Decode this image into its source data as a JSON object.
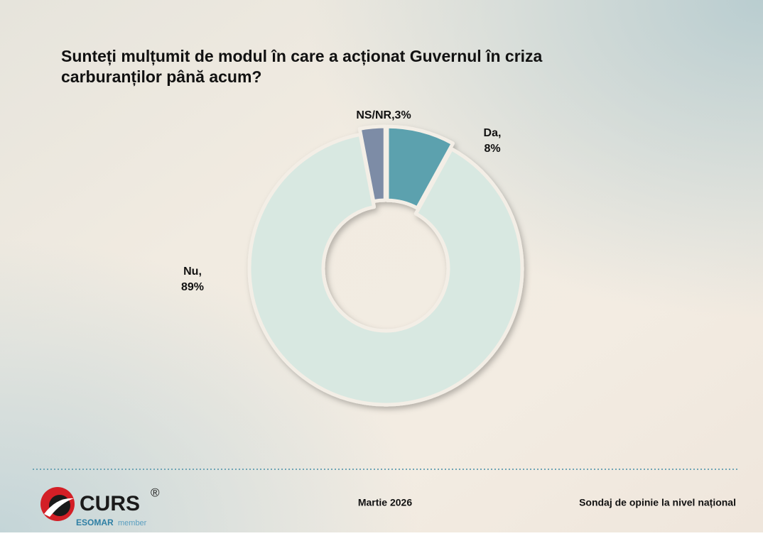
{
  "chart_data": {
    "type": "donut",
    "title": [
      "Sunteți mulțumit de modul în care a acționat Guvernul în criza",
      "carburanților până acum?"
    ],
    "categories": [
      "Da",
      "Nu",
      "NS/NR"
    ],
    "values": [
      8,
      89,
      3
    ],
    "value_labels": [
      [
        "Da,",
        "8%"
      ],
      [
        "Nu,",
        "89%"
      ],
      [
        "NS/NR,3%"
      ]
    ],
    "colors": [
      "#5ba1ae",
      "#d8e8e1",
      "#7d8ca6"
    ]
  },
  "footer": {
    "logo": "CURS",
    "registered": "®",
    "esomar": "ESOMAR",
    "member": "member",
    "date": "Martie 2026",
    "note": "Sondaj de opinie la nivel național"
  }
}
